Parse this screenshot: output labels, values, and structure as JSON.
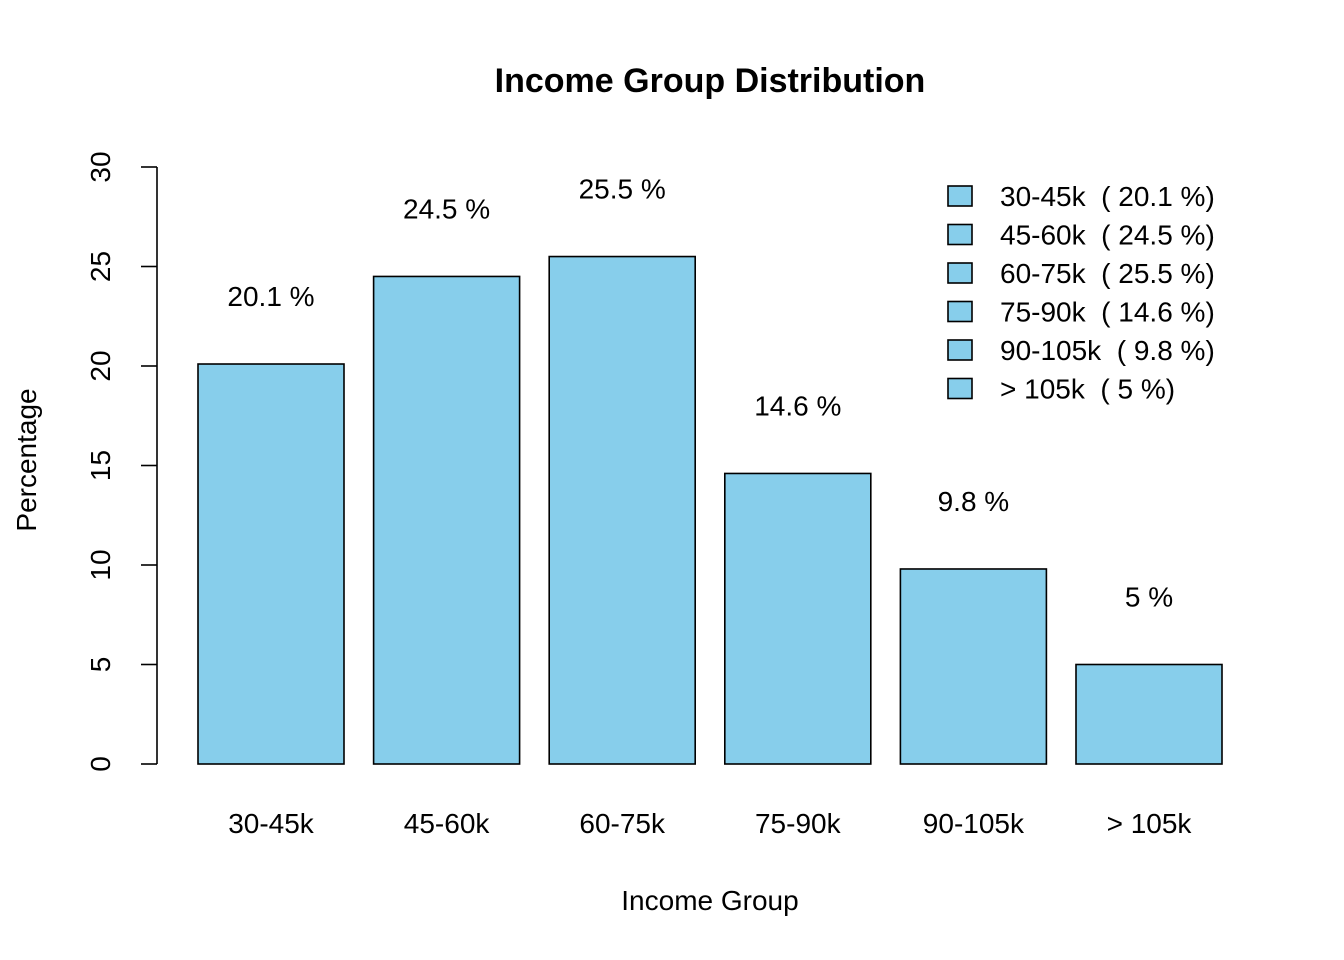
{
  "chart_data": {
    "type": "bar",
    "title": "Income Group Distribution",
    "xlabel": "Income Group",
    "ylabel": "Percentage",
    "categories": [
      "30-45k",
      "45-60k",
      "60-75k",
      "75-90k",
      "90-105k",
      "> 105k"
    ],
    "values": [
      20.1,
      24.5,
      25.5,
      14.6,
      9.8,
      5
    ],
    "data_labels": [
      "20.1 %",
      "24.5 %",
      "25.5 %",
      "14.6 %",
      "9.8 %",
      "5 %"
    ],
    "ylim": [
      0,
      30
    ],
    "yticks": [
      0,
      5,
      10,
      15,
      20,
      25,
      30
    ],
    "grid": false,
    "bar_color": "#87CEEB",
    "legend": {
      "position": "top-right",
      "entries": [
        "30-45k  ( 20.1 %)",
        "45-60k  ( 24.5 %)",
        "60-75k  ( 25.5 %)",
        "75-90k  ( 14.6 %)",
        "90-105k  ( 9.8 %)",
        "> 105k  ( 5 %)"
      ]
    }
  }
}
